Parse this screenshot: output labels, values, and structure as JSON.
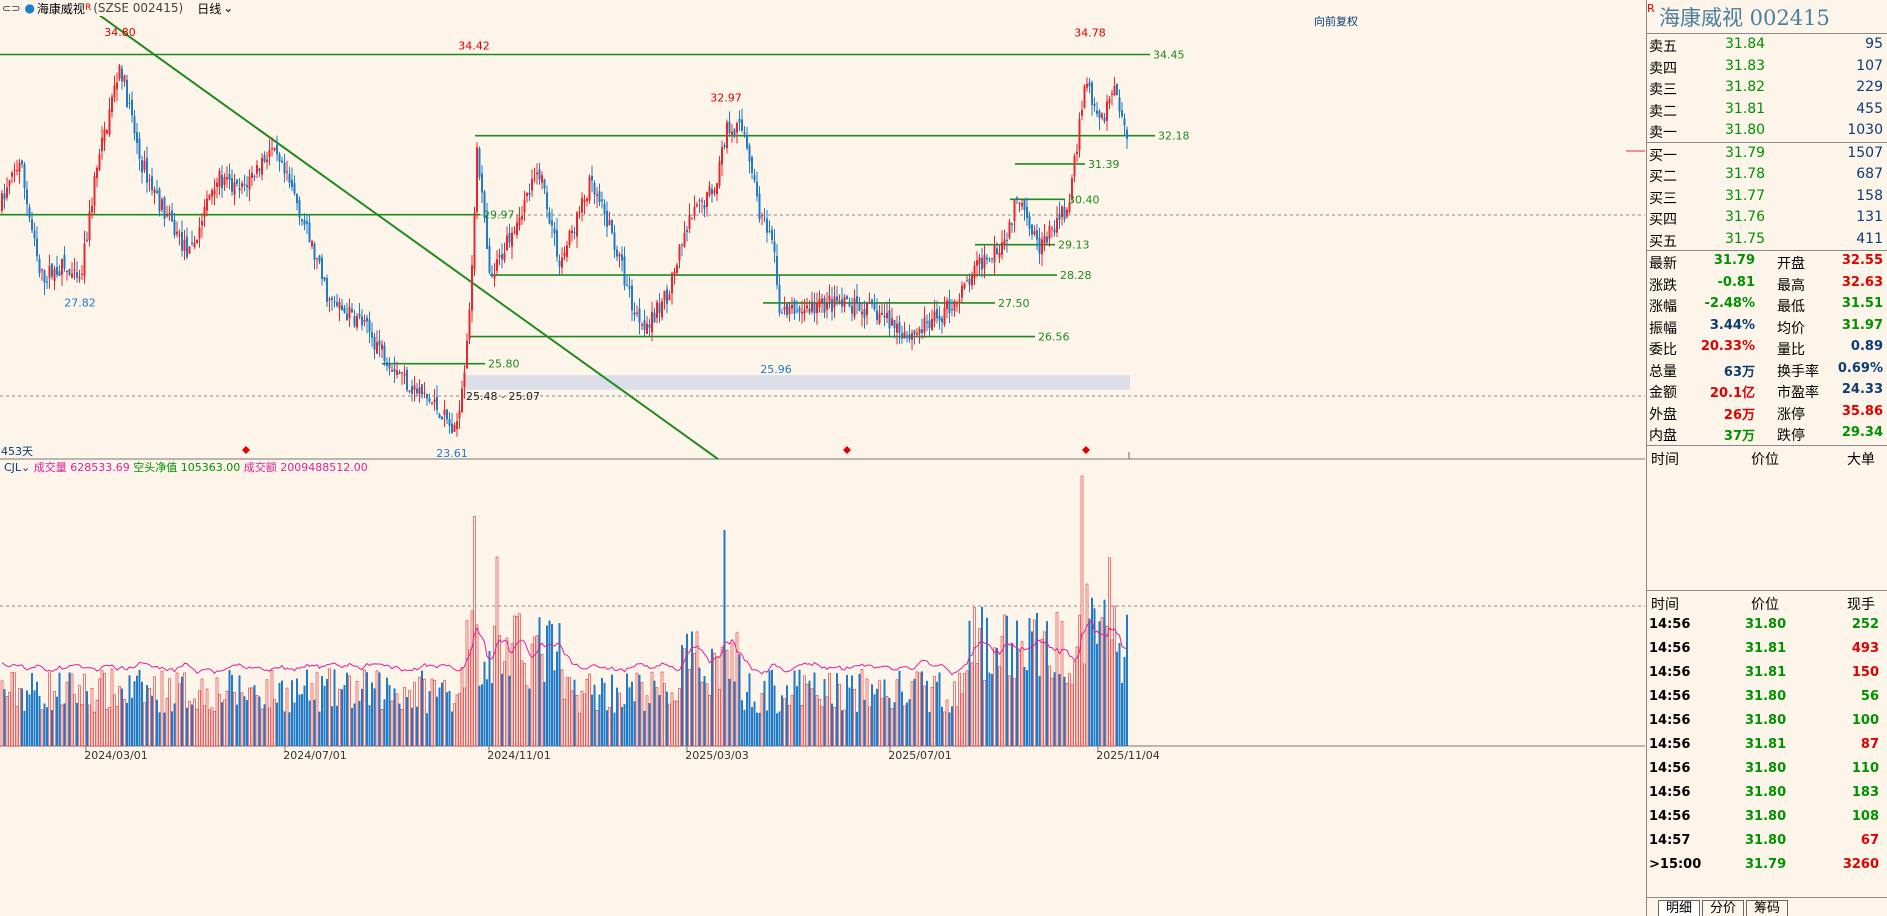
{
  "toolbar": {
    "menu_icon": "⊂⊃",
    "stock_name": "海康威视",
    "flag": "R",
    "code": "(SZSE 002415)",
    "period": "日线",
    "dropdown_icon": "chevron-down-icon"
  },
  "main_chart": {
    "restore_label": "向前复权",
    "days_label": "453天",
    "price_labels": {
      "high_left": "34.80",
      "high_mid": "34.42",
      "high_mar": "32.97",
      "high_right": "34.78",
      "low_left": "27.82",
      "low_mid": "23.61",
      "low_jun": "25.96"
    },
    "level_labels": [
      "34.45",
      "32.18",
      "31.39",
      "30.40",
      "29.97",
      "29.13",
      "28.28",
      "27.50",
      "26.56",
      "25.80"
    ],
    "zone_label": "25.48 - 25.07",
    "x_labels": [
      "2024/03/01",
      "2024/07/01",
      "2024/11/01",
      "2025/03/03",
      "2025/07/01",
      "2025/11/04"
    ],
    "colors": {
      "up": "#e8262d",
      "down": "#1f7ac8",
      "level": "#1e8a1e",
      "volume_ma": "#e0209a"
    }
  },
  "volume_panel": {
    "indicator": "CJL",
    "vol_label": "成交量",
    "vol_value": "628533.69",
    "net_label": "空头净值",
    "net_value": "105363.00",
    "amt_label": "成交额",
    "amt_value": "2009488512.00"
  },
  "panel": {
    "flag": "R",
    "title": "海康威视  002415",
    "asks": [
      {
        "label": "卖五",
        "price": "31.84",
        "vol": "95"
      },
      {
        "label": "卖四",
        "price": "31.83",
        "vol": "107"
      },
      {
        "label": "卖三",
        "price": "31.82",
        "vol": "229"
      },
      {
        "label": "卖二",
        "price": "31.81",
        "vol": "455"
      },
      {
        "label": "卖一",
        "price": "31.80",
        "vol": "1030"
      }
    ],
    "bids": [
      {
        "label": "买一",
        "price": "31.79",
        "vol": "1507"
      },
      {
        "label": "买二",
        "price": "31.78",
        "vol": "687"
      },
      {
        "label": "买三",
        "price": "31.77",
        "vol": "158"
      },
      {
        "label": "买四",
        "price": "31.76",
        "vol": "131"
      },
      {
        "label": "买五",
        "price": "31.75",
        "vol": "411"
      }
    ],
    "stats": [
      {
        "l1": "最新",
        "v1": "31.79",
        "c1": "green",
        "l2": "开盘",
        "v2": "32.55",
        "c2": "red"
      },
      {
        "l1": "涨跌",
        "v1": "-0.81",
        "c1": "green",
        "l2": "最高",
        "v2": "32.63",
        "c2": "red"
      },
      {
        "l1": "涨幅",
        "v1": "-2.48%",
        "c1": "green",
        "l2": "最低",
        "v2": "31.51",
        "c2": "green"
      },
      {
        "l1": "振幅",
        "v1": "3.44%",
        "c1": "blue",
        "l2": "均价",
        "v2": "31.97",
        "c2": "green"
      },
      {
        "l1": "委比",
        "v1": "20.33%",
        "c1": "red",
        "l2": "量比",
        "v2": "0.89",
        "c2": "blue"
      },
      {
        "l1": "总量",
        "v1": "63万",
        "c1": "blue",
        "l2": "换手率",
        "v2": "0.69%",
        "c2": "blue"
      },
      {
        "l1": "金额",
        "v1": "20.1亿",
        "c1": "red",
        "l2": "市盈率",
        "v2": "24.33",
        "c2": "blue"
      },
      {
        "l1": "外盘",
        "v1": "26万",
        "c1": "red",
        "l2": "涨停",
        "v2": "35.86",
        "c2": "red"
      },
      {
        "l1": "内盘",
        "v1": "37万",
        "c1": "green",
        "l2": "跌停",
        "v2": "29.34",
        "c2": "green"
      }
    ],
    "big_header": {
      "time": "时间",
      "price": "价位",
      "big": "大单"
    },
    "tick_header": {
      "time": "时间",
      "price": "价位",
      "vol": "现手"
    },
    "ticks": [
      {
        "time": "14:56",
        "price": "31.80",
        "vol": "252",
        "c": "green"
      },
      {
        "time": "14:56",
        "price": "31.81",
        "vol": "493",
        "c": "red"
      },
      {
        "time": "14:56",
        "price": "31.81",
        "vol": "150",
        "c": "red"
      },
      {
        "time": "14:56",
        "price": "31.80",
        "vol": "56",
        "c": "green"
      },
      {
        "time": "14:56",
        "price": "31.80",
        "vol": "100",
        "c": "green"
      },
      {
        "time": "14:56",
        "price": "31.81",
        "vol": "87",
        "c": "red"
      },
      {
        "time": "14:56",
        "price": "31.80",
        "vol": "110",
        "c": "green"
      },
      {
        "time": "14:56",
        "price": "31.80",
        "vol": "183",
        "c": "green"
      },
      {
        "time": "14:56",
        "price": "31.80",
        "vol": "108",
        "c": "green"
      },
      {
        "time": "14:57",
        "price": "31.80",
        "vol": "67",
        "c": "red"
      },
      {
        "time": "15:00",
        "price": "31.79",
        "vol": "3260",
        "c": "red"
      }
    ],
    "last_marker": ">",
    "tabs": [
      "明细",
      "分价",
      "筹码"
    ]
  }
}
